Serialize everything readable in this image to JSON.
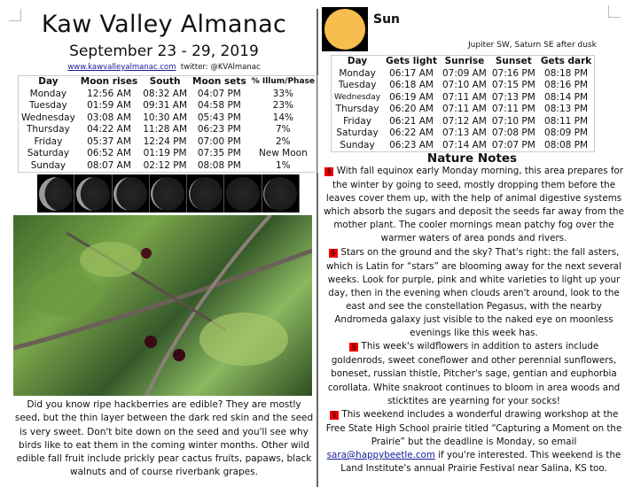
{
  "header": {
    "title": "Kaw Valley Almanac",
    "date_range": "September 23 - 29, 2019",
    "website": "www.kawvalleyalmanac.com",
    "twitter": "twitter: @KVAlmanac"
  },
  "moon_table": {
    "headers": [
      "Day",
      "Moon rises",
      "South",
      "Moon sets",
      "% Illum/Phase"
    ],
    "rows": [
      [
        "Monday",
        "12:56 AM",
        "08:32 AM",
        "04:07 PM",
        "33%"
      ],
      [
        "Tuesday",
        "01:59 AM",
        "09:31 AM",
        "04:58 PM",
        "23%"
      ],
      [
        "Wednesday",
        "03:08 AM",
        "10:30 AM",
        "05:43 PM",
        "14%"
      ],
      [
        "Thursday",
        "04:22 AM",
        "11:28 AM",
        "06:23 PM",
        "7%"
      ],
      [
        "Friday",
        "05:37 AM",
        "12:24 PM",
        "07:00 PM",
        "2%"
      ],
      [
        "Saturday",
        "06:52 AM",
        "01:19 PM",
        "07:35 PM",
        "New Moon"
      ],
      [
        "Sunday",
        "08:07 AM",
        "02:12 PM",
        "08:08 PM",
        "1%"
      ]
    ]
  },
  "moon_phase_images": [
    0.33,
    0.23,
    0.14,
    0.07,
    0.02,
    0,
    0.01
  ],
  "photo": {
    "icon": "hackberry-photo"
  },
  "caption": "Did you know ripe hackberries are edible? They are mostly seed, but the thin layer between the dark red skin and the seed is very sweet. Don't bite down on the seed and you'll see why birds like to eat them in the coming winter months. Other wild edible fall fruit include prickly pear cactus fruits, papaws, black walnuts and of course riverbank grapes.",
  "sun": {
    "title": "Sun",
    "planets": "Jupiter SW, Saturn SE after dusk",
    "color": "#f7bd4f"
  },
  "sun_table": {
    "headers": [
      "Day",
      "Gets light",
      "Sunrise",
      "Sunset",
      "Gets dark"
    ],
    "rows": [
      [
        "Monday",
        "06:17 AM",
        "07:09 AM",
        "07:16 PM",
        "08:18 PM"
      ],
      [
        "Tuesday",
        "06:18 AM",
        "07:10 AM",
        "07:15 PM",
        "08:16 PM"
      ],
      [
        "Wednesday",
        "06:19 AM",
        "07:11 AM",
        "07:13 PM",
        "08:14 PM"
      ],
      [
        "Thursday",
        "06:20 AM",
        "07:11 AM",
        "07:11 PM",
        "08:13 PM"
      ],
      [
        "Friday",
        "06:21 AM",
        "07:12 AM",
        "07:10 PM",
        "08:11 PM"
      ],
      [
        "Saturday",
        "06:22 AM",
        "07:13 AM",
        "07:08 PM",
        "08:09 PM"
      ],
      [
        "Sunday",
        "06:23 AM",
        "07:14 AM",
        "07:07 PM",
        "08:08 PM"
      ]
    ]
  },
  "nature_notes": {
    "title": "Nature Notes",
    "section_mark": "§",
    "accent": "#ee0000",
    "p1": "With fall equinox early Monday morning, this area prepares for the winter by going to seed, mostly dropping them before the leaves cover them up, with the help of animal digestive systems which absorb the sugars and deposit the seeds far away from the mother plant. The cooler mornings mean patchy fog over the warmer waters of area ponds and rivers.",
    "p2": "Stars on the ground and the sky?  That's right: the fall asters, which is Latin for “stars” are blooming away for the next several weeks. Look for purple, pink and white varieties to light up your day, then in the evening when clouds aren't around, look to the east and see the constellation Pegasus, with the nearby Andromeda galaxy just visible to the naked eye on moonless evenings like this week has.",
    "p3": "This week's wildflowers in addition to asters include goldenrods, sweet coneflower and other perennial sunflowers, boneset, russian thistle, Pitcher's sage, gentian and euphorbia corollata. White snakroot continues to bloom in area woods and sticktites are yearning for your socks!",
    "p4a": "This weekend includes a wonderful drawing workshop at the Free State High School prairie titled “Capturing a Moment on the Prairie” but the deadline is Monday, so email",
    "email": "sara@happybeetle.com",
    "p4b": "if you're interested. This weekend is the Land Institute's annual Prairie Festival near Salina, KS too."
  }
}
